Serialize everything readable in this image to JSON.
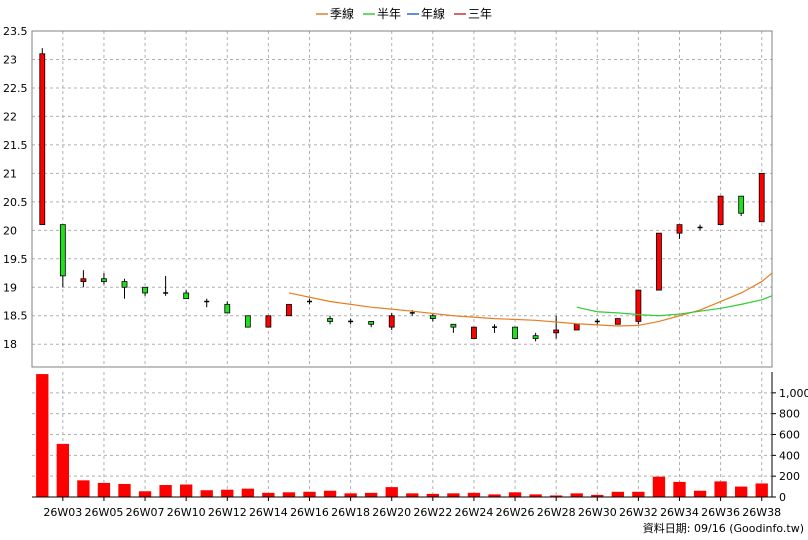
{
  "chart_data": {
    "type": "candlestick",
    "legend": [
      {
        "name": "季線",
        "color": "#e67e22"
      },
      {
        "name": "半年",
        "color": "#33cc33"
      },
      {
        "name": "年線",
        "color": "#3366cc"
      },
      {
        "name": "三年",
        "color": "#cc3333"
      }
    ],
    "legend_placement": "top-center",
    "grid": true,
    "price_axis": {
      "side": "left",
      "ylim": [
        17.6,
        23.5
      ],
      "ticks": [
        "23.5",
        "23",
        "22.5",
        "22",
        "21.5",
        "21",
        "20.5",
        "20",
        "19.5",
        "19",
        "18.5",
        "18"
      ]
    },
    "volume_axis": {
      "side": "right",
      "ylim": [
        0,
        1200
      ],
      "ticks": [
        "1,000",
        "800",
        "600",
        "400",
        "200",
        "0"
      ]
    },
    "x_labels": [
      "26W03",
      "26W05",
      "26W07",
      "26W10",
      "26W12",
      "26W14",
      "26W16",
      "26W18",
      "26W20",
      "26W22",
      "26W24",
      "26W26",
      "26W28",
      "26W30",
      "26W32",
      "26W34",
      "26W36",
      "26W38"
    ],
    "candles": [
      {
        "o": 20.1,
        "h": 23.2,
        "l": 20.1,
        "c": 23.1,
        "v": 1180
      },
      {
        "o": 20.1,
        "h": 20.1,
        "l": 19.0,
        "c": 19.2,
        "v": 510
      },
      {
        "o": 19.1,
        "h": 19.3,
        "l": 19.0,
        "c": 19.15,
        "v": 160
      },
      {
        "o": 19.15,
        "h": 19.25,
        "l": 19.05,
        "c": 19.1,
        "v": 135
      },
      {
        "o": 19.1,
        "h": 19.15,
        "l": 18.8,
        "c": 19.0,
        "v": 125
      },
      {
        "o": 19.0,
        "h": 19.0,
        "l": 18.85,
        "c": 18.9,
        "v": 55
      },
      {
        "o": 18.9,
        "h": 19.2,
        "l": 18.85,
        "c": 18.9,
        "v": 115
      },
      {
        "o": 18.9,
        "h": 18.95,
        "l": 18.8,
        "c": 18.8,
        "v": 120
      },
      {
        "o": 18.75,
        "h": 18.8,
        "l": 18.65,
        "c": 18.75,
        "v": 65
      },
      {
        "o": 18.7,
        "h": 18.75,
        "l": 18.55,
        "c": 18.55,
        "v": 70
      },
      {
        "o": 18.5,
        "h": 18.5,
        "l": 18.3,
        "c": 18.3,
        "v": 80
      },
      {
        "o": 18.3,
        "h": 18.5,
        "l": 18.3,
        "c": 18.5,
        "v": 40
      },
      {
        "o": 18.5,
        "h": 18.7,
        "l": 18.5,
        "c": 18.7,
        "v": 45
      },
      {
        "o": 18.75,
        "h": 18.8,
        "l": 18.7,
        "c": 18.75,
        "v": 50
      },
      {
        "o": 18.45,
        "h": 18.5,
        "l": 18.35,
        "c": 18.4,
        "v": 60
      },
      {
        "o": 18.4,
        "h": 18.45,
        "l": 18.35,
        "c": 18.4,
        "v": 35
      },
      {
        "o": 18.4,
        "h": 18.4,
        "l": 18.3,
        "c": 18.35,
        "v": 40
      },
      {
        "o": 18.3,
        "h": 18.55,
        "l": 18.25,
        "c": 18.5,
        "v": 95
      },
      {
        "o": 18.55,
        "h": 18.6,
        "l": 18.5,
        "c": 18.55,
        "v": 35
      },
      {
        "o": 18.5,
        "h": 18.55,
        "l": 18.4,
        "c": 18.45,
        "v": 30
      },
      {
        "o": 18.35,
        "h": 18.35,
        "l": 18.2,
        "c": 18.3,
        "v": 35
      },
      {
        "o": 18.1,
        "h": 18.3,
        "l": 18.1,
        "c": 18.3,
        "v": 40
      },
      {
        "o": 18.3,
        "h": 18.35,
        "l": 18.2,
        "c": 18.3,
        "v": 25
      },
      {
        "o": 18.3,
        "h": 18.3,
        "l": 18.1,
        "c": 18.1,
        "v": 45
      },
      {
        "o": 18.15,
        "h": 18.2,
        "l": 18.05,
        "c": 18.1,
        "v": 25
      },
      {
        "o": 18.2,
        "h": 18.5,
        "l": 18.1,
        "c": 18.25,
        "v": 15
      },
      {
        "o": 18.25,
        "h": 18.35,
        "l": 18.25,
        "c": 18.35,
        "v": 35
      },
      {
        "o": 18.4,
        "h": 18.45,
        "l": 18.35,
        "c": 18.4,
        "v": 20
      },
      {
        "o": 18.35,
        "h": 18.45,
        "l": 18.35,
        "c": 18.45,
        "v": 50
      },
      {
        "o": 18.4,
        "h": 18.95,
        "l": 18.35,
        "c": 18.95,
        "v": 50
      },
      {
        "o": 18.95,
        "h": 19.95,
        "l": 18.95,
        "c": 19.95,
        "v": 195
      },
      {
        "o": 19.95,
        "h": 20.1,
        "l": 19.85,
        "c": 20.1,
        "v": 145
      },
      {
        "o": 20.05,
        "h": 20.1,
        "l": 20.0,
        "c": 20.05,
        "v": 60
      },
      {
        "o": 20.1,
        "h": 20.6,
        "l": 20.1,
        "c": 20.6,
        "v": 150
      },
      {
        "o": 20.6,
        "h": 20.6,
        "l": 20.25,
        "c": 20.3,
        "v": 100
      },
      {
        "o": 20.15,
        "h": 21.0,
        "l": 20.15,
        "c": 21.0,
        "v": 130
      }
    ],
    "ma_quarter": [
      [
        12,
        18.9
      ],
      [
        14,
        18.75
      ],
      [
        16,
        18.65
      ],
      [
        18,
        18.58
      ],
      [
        20,
        18.5
      ],
      [
        22,
        18.45
      ],
      [
        24,
        18.42
      ],
      [
        26,
        18.36
      ],
      [
        28,
        18.32
      ],
      [
        29,
        18.33
      ],
      [
        30,
        18.4
      ],
      [
        31,
        18.5
      ],
      [
        32,
        18.6
      ],
      [
        33,
        18.75
      ],
      [
        34,
        18.9
      ],
      [
        35,
        19.1
      ],
      [
        35.5,
        19.25
      ]
    ],
    "ma_halfyear": [
      [
        26,
        18.65
      ],
      [
        27,
        18.57
      ],
      [
        28,
        18.55
      ],
      [
        29,
        18.52
      ],
      [
        30,
        18.5
      ],
      [
        31,
        18.53
      ],
      [
        32,
        18.58
      ],
      [
        33,
        18.63
      ],
      [
        34,
        18.7
      ],
      [
        35,
        18.78
      ],
      [
        35.5,
        18.85
      ]
    ],
    "footer_text": "資料日期: 09/16  (Goodinfo.tw)"
  }
}
